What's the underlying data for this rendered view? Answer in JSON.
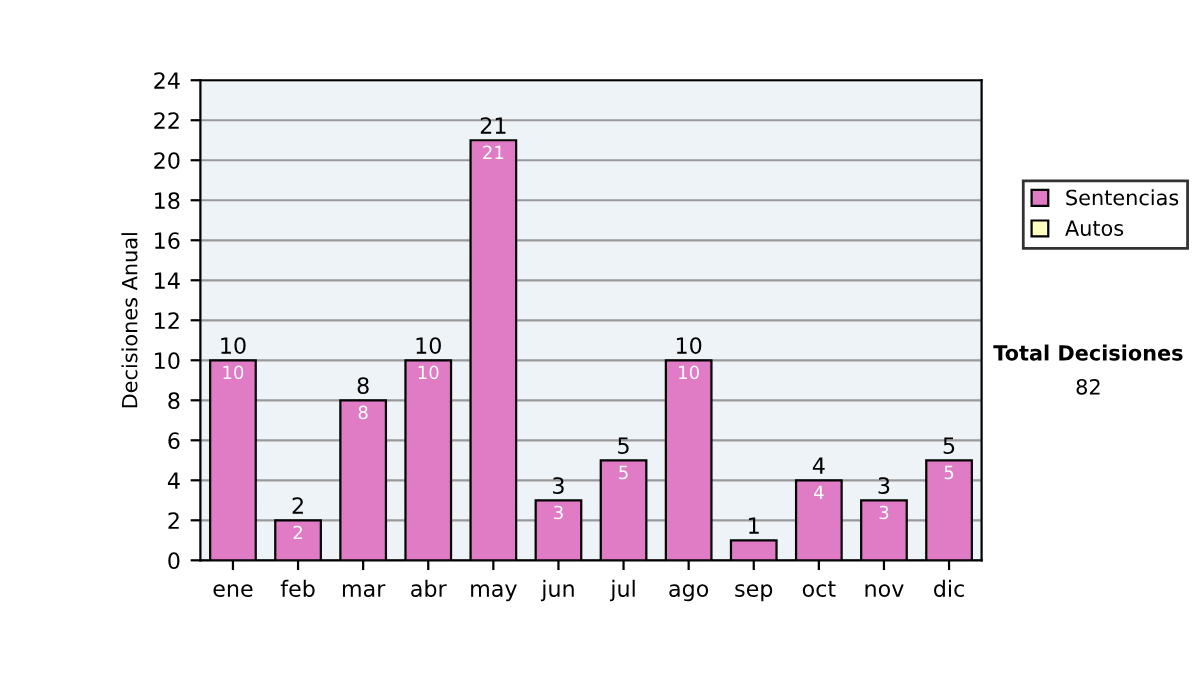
{
  "chart_data": {
    "type": "bar",
    "ylabel": "Decisiones Anual",
    "categories": [
      "ene",
      "feb",
      "mar",
      "abr",
      "may",
      "jun",
      "jul",
      "ago",
      "sep",
      "oct",
      "nov",
      "dic"
    ],
    "series": [
      {
        "name": "Sentencias",
        "color": "#e07cc5",
        "values": [
          10,
          2,
          8,
          10,
          21,
          3,
          5,
          10,
          1,
          4,
          3,
          5
        ],
        "value_labels": [
          "10",
          "2",
          "8",
          "10",
          "21",
          "3",
          "5",
          "10",
          null,
          "4",
          "3",
          "5"
        ]
      },
      {
        "name": "Autos",
        "color": "#ffffc0",
        "values": [
          0,
          0,
          0,
          0,
          0,
          0,
          0,
          0,
          0,
          0,
          0,
          0
        ]
      }
    ],
    "stacked": true,
    "totals": [
      "10",
      "2",
      "8",
      "10",
      "21",
      "3",
      "5",
      "10",
      "1",
      "4",
      "3",
      "5"
    ],
    "ylim": [
      0,
      24
    ],
    "yticks": [
      0,
      2,
      4,
      6,
      8,
      10,
      12,
      14,
      16,
      18,
      20,
      22,
      24
    ],
    "grid": "y",
    "legend": "right",
    "annotations": [
      "Total Decisiones",
      "82"
    ]
  }
}
